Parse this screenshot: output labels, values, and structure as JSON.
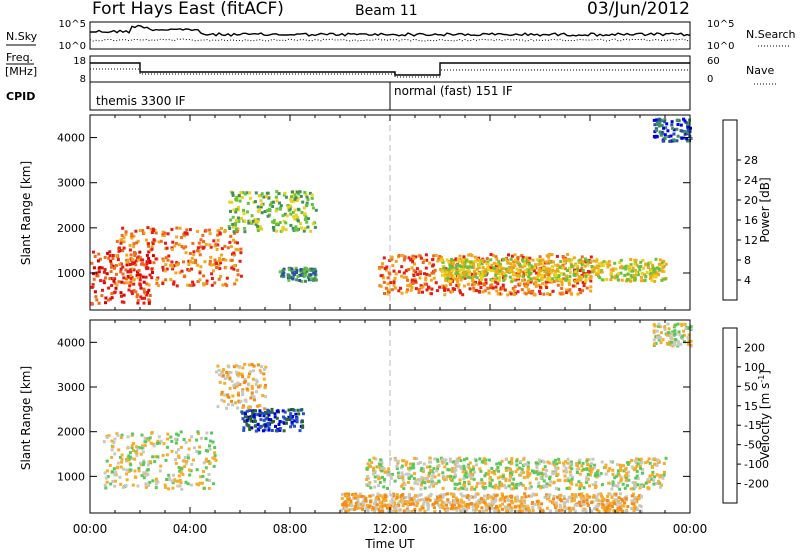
{
  "header": {
    "station": "Fort Hays East (fitACF)",
    "beam": "Beam 11",
    "date": "03/Jun/2012"
  },
  "noise_panel": {
    "left_label": "N.Sky",
    "left_ticks": [
      "10^5",
      "10^0"
    ],
    "right_label": "N.Search",
    "right_ticks": [
      "10^5",
      "10^0"
    ]
  },
  "freq_panel": {
    "left_label_line1": "Freq.",
    "left_label_line2": "[MHz]",
    "left_ticks": [
      "18",
      "8"
    ],
    "right_label": "Nave",
    "right_ticks": [
      "60",
      "0"
    ]
  },
  "cpid_panel": {
    "label": "CPID",
    "programs": [
      "themis 3300 IF",
      "normal (fast) 151 IF"
    ]
  },
  "time_axis": {
    "label": "Time UT",
    "ticks": [
      "00:00",
      "04:00",
      "08:00",
      "12:00",
      "16:00",
      "20:00",
      "00:00"
    ]
  },
  "range_axis": {
    "label": "Slant Range [km]",
    "ticks": [
      "1000",
      "2000",
      "3000",
      "4000"
    ]
  },
  "power_colorbar": {
    "label": "Power [dB]",
    "ticks": [
      "4",
      "8",
      "12",
      "16",
      "20",
      "24",
      "28"
    ],
    "colors": [
      "#0000ee",
      "#2a4fa8",
      "#3f8f5f",
      "#66c23a",
      "#e8d21a",
      "#f4a51a",
      "#f26a1c",
      "#e81a14",
      "#d60000"
    ]
  },
  "velocity_colorbar": {
    "label_main": "Velocity [m s",
    "label_sup": "-1",
    "label_end": "]",
    "ticks": [
      "-200",
      "-100",
      "-50",
      "-15",
      "15",
      "50",
      "100",
      "200"
    ],
    "colors": [
      "#e60000",
      "#f24a0a",
      "#f58a14",
      "#f7ad2a",
      "#c8c8c0",
      "#58c85a",
      "#2a6a1a",
      "#2450c8",
      "#0000dd"
    ]
  },
  "chart_data": [
    {
      "type": "heatmap",
      "name": "power",
      "xlim": [
        "00:00",
        "24:00"
      ],
      "ylim": [
        180,
        4500
      ],
      "colorbar_range": [
        0,
        30
      ],
      "features": [
        {
          "time": [
            0.0,
            2.5
          ],
          "range": [
            300,
            1500
          ],
          "power_db": 26
        },
        {
          "time": [
            1.0,
            6.0
          ],
          "range": [
            700,
            2000
          ],
          "power_db": 20
        },
        {
          "time": [
            5.5,
            9.0
          ],
          "range": [
            1900,
            2800
          ],
          "power_db": 10
        },
        {
          "time": [
            7.5,
            9.0
          ],
          "range": [
            800,
            1100
          ],
          "power_db": 8
        },
        {
          "time": [
            11.5,
            20.0
          ],
          "range": [
            500,
            1400
          ],
          "power_db": 22
        },
        {
          "time": [
            14.0,
            23.0
          ],
          "range": [
            800,
            1300
          ],
          "power_db": 14
        },
        {
          "time": [
            22.5,
            24.0
          ],
          "range": [
            3900,
            4400
          ],
          "power_db": 6
        }
      ]
    },
    {
      "type": "heatmap",
      "name": "velocity",
      "xlim": [
        "00:00",
        "24:00"
      ],
      "ylim": [
        180,
        4500
      ],
      "colorbar_range": [
        -250,
        250
      ],
      "features": [
        {
          "time": [
            0.5,
            5.0
          ],
          "range": [
            700,
            2000
          ],
          "velocity": 0
        },
        {
          "time": [
            6.0,
            8.5
          ],
          "range": [
            2000,
            2500
          ],
          "velocity": 180
        },
        {
          "time": [
            5.0,
            7.0
          ],
          "range": [
            2500,
            3500
          ],
          "velocity": -60
        },
        {
          "time": [
            10.0,
            22.0
          ],
          "range": [
            200,
            600
          ],
          "velocity": -60
        },
        {
          "time": [
            11.0,
            23.0
          ],
          "range": [
            700,
            1400
          ],
          "velocity": 0
        },
        {
          "time": [
            22.5,
            24.0
          ],
          "range": [
            3900,
            4400
          ],
          "velocity": 0
        }
      ]
    }
  ]
}
